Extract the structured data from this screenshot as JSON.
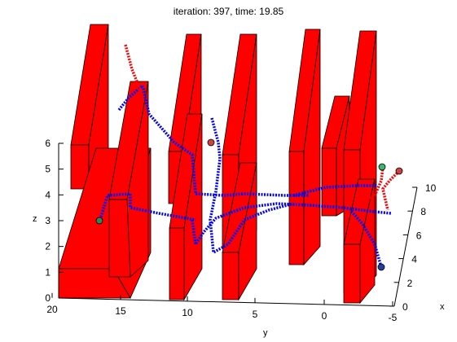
{
  "chart_data": {
    "type": "scatter",
    "title": "iteration: 397, time: 19.85",
    "xlabel": "x",
    "ylabel": "y",
    "zlabel": "z",
    "xlim": [
      0,
      10
    ],
    "ylim": [
      -5,
      20
    ],
    "zlim": [
      0,
      6
    ],
    "x_ticks": [
      "0",
      "2",
      "4",
      "6",
      "8",
      "10"
    ],
    "y_ticks": [
      "20",
      "15",
      "10",
      "5",
      "0",
      "-5"
    ],
    "z_ticks": [
      "0",
      "1",
      "2",
      "3",
      "4",
      "5",
      "6"
    ],
    "grid": false,
    "obstacle_color": "#ff0000",
    "trajectory_colors": [
      "#0000ff",
      "#ff0000"
    ],
    "agent_marker_colors": [
      "#2e8b57",
      "#3cb371",
      "#d04040",
      "#2040a0"
    ],
    "obstacles": "red rectangular walls",
    "trajectories": "blue/red dotted robot paths with circular agent markers"
  }
}
